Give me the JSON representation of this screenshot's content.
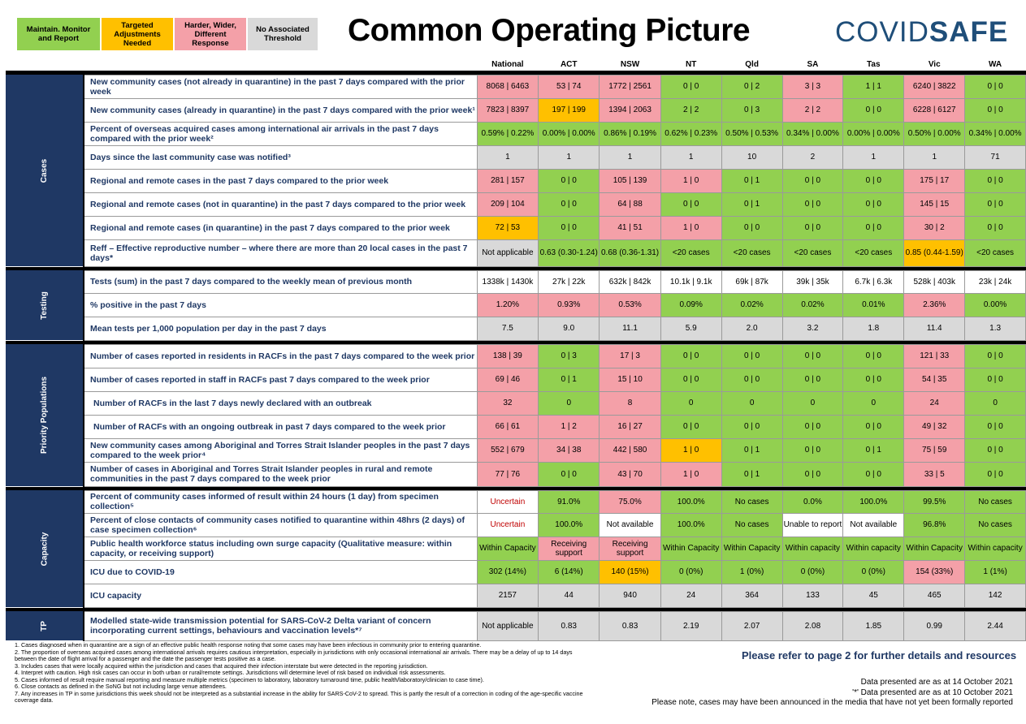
{
  "legend": [
    {
      "label": "Maintain. Monitor and Report",
      "color": "#92d050"
    },
    {
      "label": "Targeted Adjustments Needed",
      "color": "#ffc000"
    },
    {
      "label": "Harder, Wider, Different Response",
      "color": "#f4a0a8"
    },
    {
      "label": "No Associated Threshold",
      "color": "#d9d9d9"
    }
  ],
  "title": "Common Operating Picture",
  "logo": {
    "part1": "COVID",
    "part2": "SAFE"
  },
  "columns": [
    "National",
    "ACT",
    "NSW",
    "NT",
    "Qld",
    "SA",
    "Tas",
    "Vic",
    "WA"
  ],
  "sections": {
    "cases": "Cases",
    "testing": "Testing",
    "priority": "Priority Populations",
    "capacity": "Capacity",
    "tp": "TP"
  },
  "rows": {
    "r1": {
      "label": "New community cases (not already in quarantine) in the past 7 days compared with the prior week",
      "cells": [
        "8068 | 6463",
        "53 | 74",
        "1772 | 2561",
        "0 | 0",
        "0 | 2",
        "3 | 3",
        "1 | 1",
        "6240 | 3822",
        "0 | 0"
      ]
    },
    "r2": {
      "label": "New community cases (already in quarantine) in the past 7 days compared with the prior week¹",
      "cells": [
        "7823 | 8397",
        "197 | 199",
        "1394 | 2063",
        "2 | 2",
        "0 | 3",
        "2 | 2",
        "0 | 0",
        "6228 | 6127",
        "0 | 0"
      ]
    },
    "r3": {
      "label": "Percent of overseas acquired cases among international air arrivals in the past 7 days compared with the prior week²",
      "cells": [
        "0.59% | 0.22%",
        "0.00% | 0.00%",
        "0.86% | 0.19%",
        "0.62% | 0.23%",
        "0.50% | 0.53%",
        "0.34% | 0.00%",
        "0.00% | 0.00%",
        "0.50% | 0.00%",
        "0.34% | 0.00%"
      ]
    },
    "r4": {
      "label": "Days since the last community case was notified³",
      "cells": [
        "1",
        "1",
        "1",
        "1",
        "10",
        "2",
        "1",
        "1",
        "71"
      ]
    },
    "r5": {
      "label": "Regional and remote cases in the past 7 days compared to the prior week",
      "cells": [
        "281 | 157",
        "0 | 0",
        "105 | 139",
        "1 | 0",
        "0 | 1",
        "0 | 0",
        "0 | 0",
        "175 | 17",
        "0 | 0"
      ]
    },
    "r6": {
      "label": "Regional and remote cases (not in quarantine) in the past 7 days compared to the prior week",
      "cells": [
        "209 | 104",
        "0 | 0",
        "64 | 88",
        "0 | 0",
        "0 | 1",
        "0 | 0",
        "0 | 0",
        "145 | 15",
        "0 | 0"
      ]
    },
    "r7": {
      "label": "Regional and remote cases (in quarantine) in the past 7 days compared to the prior week",
      "cells": [
        "72 | 53",
        "0 | 0",
        "41 | 51",
        "1 | 0",
        "0 | 0",
        "0 | 0",
        "0 | 0",
        "30 | 2",
        "0 | 0"
      ]
    },
    "r8": {
      "label": "Reff – Effective reproductive number – where there are more than 20 local cases in the past 7 days*",
      "cells": [
        "Not applicable",
        "0.63 (0.30-1.24)",
        "0.68 (0.36-1.31)",
        "<20 cases",
        "<20 cases",
        "<20 cases",
        "<20 cases",
        "0.85 (0.44-1.59)",
        "<20 cases"
      ]
    },
    "t1": {
      "label": "Tests (sum) in the past 7 days compared to the weekly mean of previous month",
      "cells": [
        "1338k | 1430k",
        "27k | 22k",
        "632k | 842k",
        "10.1k | 9.1k",
        "69k | 87k",
        "39k | 35k",
        "6.7k | 6.3k",
        "528k | 403k",
        "23k | 24k"
      ]
    },
    "t2": {
      "label": "% positive in the past 7 days",
      "cells": [
        "1.20%",
        "0.93%",
        "0.53%",
        "0.09%",
        "0.02%",
        "0.02%",
        "0.01%",
        "2.36%",
        "0.00%"
      ]
    },
    "t3": {
      "label": "Mean tests per 1,000 population per day in the past 7 days",
      "cells": [
        "7.5",
        "9.0",
        "11.1",
        "5.9",
        "2.0",
        "3.2",
        "1.8",
        "11.4",
        "1.3"
      ]
    },
    "p1": {
      "label": "Number of cases reported in residents in RACFs in the past 7 days compared to the week prior",
      "cells": [
        "138 | 39",
        "0 | 3",
        "17 | 3",
        "0 | 0",
        "0 | 0",
        "0 | 0",
        "0 | 0",
        "121 | 33",
        "0 | 0"
      ]
    },
    "p2": {
      "label": "Number of cases reported in staff in RACFs past 7 days compared to the week prior",
      "cells": [
        "69 | 46",
        "0 | 1",
        "15 | 10",
        "0 | 0",
        "0 | 0",
        "0 | 0",
        "0 | 0",
        "54 | 35",
        "0 | 0"
      ]
    },
    "p3": {
      "label": "Number of RACFs in the last 7 days newly declared with an outbreak",
      "cells": [
        "32",
        "0",
        "8",
        "0",
        "0",
        "0",
        "0",
        "24",
        "0"
      ]
    },
    "p4": {
      "label": "Number of RACFs with an ongoing outbreak in past 7 days compared to the week prior",
      "cells": [
        "66 | 61",
        "1 | 2",
        "16 | 27",
        "0 | 0",
        "0 | 0",
        "0 | 0",
        "0 | 0",
        "49 | 32",
        "0 | 0"
      ]
    },
    "p5": {
      "label": "New community cases among Aboriginal and Torres Strait Islander peoples in the past 7 days compared to the week prior⁴",
      "cells": [
        "552 | 679",
        "34 | 38",
        "442 | 580",
        "1 | 0",
        "0 | 1",
        "0 | 0",
        "0 | 1",
        "75 | 59",
        "0 | 0"
      ]
    },
    "p6": {
      "label": "Number of cases in Aboriginal and Torres Strait Islander peoples in rural and remote communities in the past 7 days compared to the week prior",
      "cells": [
        "77 | 76",
        "0 | 0",
        "43 | 70",
        "1 | 0",
        "0 | 1",
        "0 | 0",
        "0 | 0",
        "33 | 5",
        "0 | 0"
      ]
    },
    "c1": {
      "label": "Percent of community cases informed of result within 24 hours (1 day) from specimen collection⁵",
      "cells": [
        "Uncertain",
        "91.0%",
        "75.0%",
        "100.0%",
        "No cases",
        "0.0%",
        "100.0%",
        "99.5%",
        "No cases"
      ]
    },
    "c2": {
      "label": "Percent of close contacts of community cases notified to quarantine within 48hrs (2 days) of case specimen collection⁶",
      "cells": [
        "Uncertain",
        "100.0%",
        "Not available",
        "100.0%",
        "No cases",
        "Unable to report",
        "Not available",
        "96.8%",
        "No cases"
      ]
    },
    "c3": {
      "label": "Public health workforce status including own surge capacity (Qualitative measure: within capacity, or receiving support)",
      "cells": [
        "Within Capacity",
        "Receiving support",
        "Receiving support",
        "Within Capacity",
        "Within Capacity",
        "Within capacity",
        "Within capacity",
        "Within Capacity",
        "Within capacity"
      ]
    },
    "c4": {
      "label": "ICU due to COVID-19",
      "cells": [
        "302 (14%)",
        "6 (14%)",
        "140 (15%)",
        "0 (0%)",
        "1 (0%)",
        "0 (0%)",
        "0 (0%)",
        "154 (33%)",
        "1 (1%)"
      ]
    },
    "c5": {
      "label": "ICU capacity",
      "cells": [
        "2157",
        "44",
        "940",
        "24",
        "364",
        "133",
        "45",
        "465",
        "142"
      ]
    },
    "tp1": {
      "label": "Modelled state-wide transmission potential for SARS-CoV-2 Delta variant of concern incorporating current settings, behaviours and vaccination levels*⁷",
      "cells": [
        "Not applicable",
        "0.83",
        "0.83",
        "2.19",
        "2.07",
        "2.08",
        "1.85",
        "0.99",
        "2.44"
      ]
    }
  },
  "footnotes": [
    "1. Cases diagnosed when in quarantine are a sign of an effective public health response noting that some cases may have been infectious in community prior to entering quarantine.",
    "2. The proportion of overseas acquired cases among international arrivals requires cautious interpretation, especially in jurisdictions with only occasional international air arrivals. There may be a delay of up to 14 days between the date of flight arrival for a passenger and the date the passenger tests positive as a case.",
    "3. Includes cases that were locally acquired within the jurisdiction and cases that acquired their infection interstate but were detected in the reporting jurisdiction.",
    "4. Interpret with caution. High risk cases can occur in both urban or rural/remote settings. Jurisdictions will determine level of risk based on individual risk assessments.",
    "5. Cases informed of result require manual reporting and measure multiple metrics (specimen to laboratory, laboratory turnaround time, public health/laboratory/clinician to case time).",
    "6. Close contacts as defined in the SoNG but not including large venue attendees.",
    "7. Any increases in TP in some jurisdictions this week should not be interpreted as a substantial increase in the ability for SARS-CoV-2 to spread. This is partly the result of a correction in coding of the age-specific vaccine coverage data."
  ],
  "refer": "Please refer to page 2 for further details and resources",
  "dates": [
    "Data presented are as at 14 October 2021",
    "'*' Data presented are as at 10 October 2021",
    "Please note, cases may have been announced in the media that have not yet been formally reported"
  ]
}
